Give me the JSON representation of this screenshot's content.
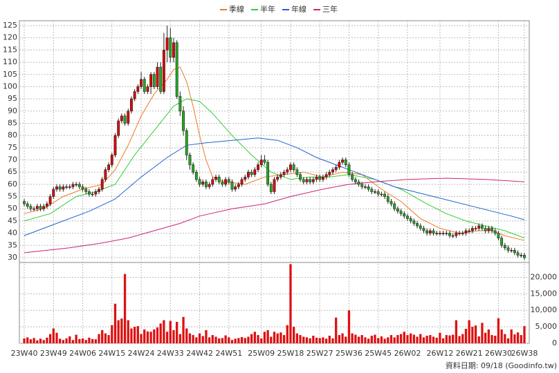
{
  "chart_data": {
    "type": "candlestick",
    "up_color": "#e00000",
    "down_color": "#22aa22",
    "grid": true,
    "xlim": [
      -1.5,
      155.5
    ],
    "xticks": [
      {
        "value": 0,
        "label": "23W40"
      },
      {
        "value": 9,
        "label": "23W49"
      },
      {
        "value": 18,
        "label": "24W06"
      },
      {
        "value": 27,
        "label": "24W15"
      },
      {
        "value": 36,
        "label": "24W24"
      },
      {
        "value": 45,
        "label": "24W33"
      },
      {
        "value": 54,
        "label": "24W42"
      },
      {
        "value": 63,
        "label": "24W51"
      },
      {
        "value": 73,
        "label": "25W09"
      },
      {
        "value": 82,
        "label": "25W18"
      },
      {
        "value": 91,
        "label": "25W27"
      },
      {
        "value": 100,
        "label": "25W36"
      },
      {
        "value": 109,
        "label": "25W45"
      },
      {
        "value": 118,
        "label": "26W02"
      },
      {
        "value": 128,
        "label": "26W12"
      },
      {
        "value": 137,
        "label": "26W21"
      },
      {
        "value": 146,
        "label": "26W30"
      },
      {
        "value": 154,
        "label": "26W38"
      }
    ],
    "ylim": [
      28,
      127
    ],
    "yticks": [
      30,
      35,
      40,
      45,
      50,
      55,
      60,
      65,
      70,
      75,
      80,
      85,
      90,
      95,
      100,
      105,
      110,
      115,
      120,
      125
    ],
    "open": [
      53,
      52,
      51,
      50,
      50,
      51,
      50,
      51,
      52,
      55,
      58,
      59,
      58,
      59,
      59,
      59,
      60,
      60,
      59,
      58,
      57,
      56,
      56,
      57,
      58,
      62,
      66,
      68,
      72,
      80,
      86,
      88,
      85,
      90,
      95,
      98,
      100,
      103,
      98,
      100,
      105,
      100,
      108,
      98,
      115,
      120,
      112,
      118,
      96,
      90,
      82,
      72,
      68,
      65,
      62,
      60,
      61,
      59,
      60,
      62,
      63,
      61,
      60,
      62,
      61,
      58,
      59,
      60,
      62,
      63,
      65,
      64,
      66,
      68,
      70,
      69,
      60,
      57,
      62,
      63,
      64,
      65,
      66,
      68,
      66,
      64,
      62,
      61,
      62,
      61,
      62,
      63,
      62,
      63,
      64,
      65,
      66,
      67,
      69,
      70,
      68,
      64,
      62,
      61,
      60,
      59,
      59,
      58,
      57,
      57,
      56,
      56,
      55,
      53,
      52,
      50,
      49,
      48,
      47,
      46,
      45,
      44,
      43,
      42,
      41,
      40,
      41,
      40,
      40,
      40,
      40,
      40,
      39,
      39,
      40,
      40,
      40,
      41,
      41,
      42,
      42,
      43,
      42,
      41,
      42,
      41,
      40,
      38,
      35,
      34,
      33,
      33,
      32,
      31,
      31
    ],
    "high": [
      54,
      53,
      52,
      51,
      52,
      52,
      52,
      53,
      56,
      59,
      60,
      60,
      60,
      60,
      60,
      61,
      61,
      61,
      60,
      59,
      58,
      57,
      58,
      59,
      63,
      67,
      69,
      73,
      81,
      87,
      89,
      89,
      91,
      96,
      99,
      101,
      106,
      104,
      101,
      106,
      106,
      110,
      110,
      122,
      125,
      124,
      120,
      119,
      98,
      92,
      83,
      73,
      69,
      66,
      63,
      62,
      62,
      61,
      63,
      64,
      64,
      62,
      63,
      63,
      62,
      60,
      61,
      63,
      64,
      66,
      66,
      67,
      69,
      72,
      72,
      70,
      61,
      63,
      64,
      65,
      66,
      67,
      69,
      69,
      67,
      65,
      63,
      63,
      63,
      63,
      64,
      64,
      64,
      65,
      66,
      67,
      68,
      70,
      71,
      71,
      69,
      65,
      63,
      62,
      61,
      60,
      60,
      59,
      58,
      58,
      57,
      57,
      56,
      54,
      53,
      51,
      50,
      49,
      48,
      47,
      46,
      45,
      44,
      43,
      42,
      42,
      42,
      41,
      41,
      41,
      41,
      41,
      40,
      41,
      41,
      41,
      42,
      42,
      43,
      43,
      44,
      44,
      43,
      43,
      43,
      42,
      41,
      39,
      36,
      35,
      34,
      34,
      33,
      32,
      32
    ],
    "low": [
      51,
      50,
      49,
      49,
      49,
      49,
      49,
      50,
      51,
      54,
      57,
      57,
      57,
      58,
      58,
      58,
      59,
      58,
      57,
      56,
      55,
      55,
      55,
      56,
      57,
      61,
      65,
      67,
      71,
      79,
      85,
      84,
      84,
      89,
      94,
      97,
      99,
      97,
      97,
      97,
      99,
      99,
      97,
      97,
      110,
      110,
      110,
      95,
      88,
      80,
      70,
      66,
      64,
      61,
      59,
      59,
      58,
      58,
      59,
      61,
      60,
      59,
      59,
      60,
      57,
      57,
      58,
      59,
      61,
      62,
      63,
      63,
      65,
      67,
      68,
      59,
      56,
      56,
      61,
      62,
      63,
      64,
      65,
      65,
      63,
      61,
      60,
      60,
      60,
      60,
      61,
      61,
      61,
      62,
      63,
      64,
      65,
      66,
      68,
      67,
      63,
      61,
      60,
      59,
      58,
      58,
      57,
      56,
      56,
      55,
      55,
      54,
      52,
      51,
      49,
      48,
      47,
      46,
      45,
      44,
      43,
      42,
      41,
      40,
      39,
      39,
      39,
      39,
      39,
      39,
      39,
      38,
      38,
      38,
      39,
      39,
      39,
      40,
      40,
      41,
      41,
      41,
      40,
      40,
      40,
      39,
      37,
      34,
      33,
      32,
      32,
      31,
      30,
      30,
      29
    ],
    "close": [
      52,
      51,
      50,
      50,
      51,
      50,
      51,
      52,
      55,
      58,
      59,
      58,
      59,
      59,
      59,
      60,
      60,
      59,
      58,
      57,
      56,
      56,
      57,
      58,
      62,
      66,
      68,
      72,
      80,
      86,
      88,
      85,
      90,
      95,
      98,
      100,
      103,
      98,
      100,
      105,
      100,
      108,
      98,
      115,
      120,
      112,
      118,
      96,
      90,
      82,
      72,
      68,
      65,
      62,
      60,
      61,
      59,
      60,
      62,
      63,
      61,
      60,
      62,
      61,
      58,
      59,
      60,
      62,
      63,
      65,
      64,
      66,
      68,
      70,
      69,
      60,
      57,
      62,
      63,
      64,
      65,
      66,
      68,
      66,
      64,
      62,
      61,
      62,
      61,
      62,
      63,
      62,
      63,
      64,
      65,
      66,
      67,
      69,
      70,
      68,
      64,
      62,
      61,
      60,
      59,
      59,
      58,
      57,
      57,
      56,
      56,
      55,
      53,
      52,
      50,
      49,
      48,
      47,
      46,
      45,
      44,
      43,
      42,
      41,
      40,
      41,
      40,
      40,
      40,
      40,
      40,
      39,
      39,
      40,
      40,
      40,
      41,
      41,
      42,
      42,
      43,
      42,
      41,
      42,
      41,
      40,
      38,
      35,
      34,
      33,
      33,
      32,
      31,
      31,
      30
    ],
    "series": [
      {
        "name": "季線",
        "color": "#f07820",
        "x": [
          0,
          6,
          12,
          18,
          24,
          28,
          32,
          36,
          40,
          44,
          46,
          48,
          50,
          52,
          54,
          56,
          58,
          62,
          68,
          74,
          80,
          86,
          92,
          98,
          104,
          110,
          116,
          122,
          128,
          134,
          140,
          144,
          148,
          154
        ],
        "values": [
          48,
          50,
          55,
          58,
          60,
          66,
          76,
          88,
          97,
          103,
          107,
          108,
          102,
          92,
          80,
          70,
          63,
          61,
          60,
          63,
          64,
          65,
          63,
          65,
          64,
          58,
          53,
          46,
          42,
          40,
          41,
          41,
          39,
          37
        ]
      },
      {
        "name": "半年",
        "color": "#33cc33",
        "x": [
          0,
          8,
          16,
          22,
          28,
          34,
          40,
          46,
          50,
          54,
          58,
          64,
          70,
          76,
          82,
          88,
          94,
          100,
          108,
          116,
          124,
          130,
          136,
          142,
          148,
          154
        ],
        "values": [
          45,
          48,
          55,
          57,
          60,
          72,
          82,
          92,
          95,
          94,
          89,
          80,
          72,
          65,
          62,
          63,
          63,
          64,
          62,
          58,
          52,
          48,
          45,
          43,
          41,
          38
        ]
      },
      {
        "name": "年線",
        "color": "#2060d0",
        "x": [
          0,
          10,
          20,
          28,
          36,
          44,
          50,
          56,
          64,
          72,
          78,
          84,
          90,
          96,
          102,
          108,
          114,
          120,
          126,
          132,
          138,
          144,
          150,
          154
        ],
        "values": [
          39,
          44,
          49,
          54,
          63,
          71,
          76,
          77,
          78,
          79,
          78,
          75,
          71,
          68,
          65,
          62,
          59,
          57,
          55,
          53,
          51,
          49,
          47,
          45.5
        ]
      },
      {
        "name": "三年",
        "color": "#cc2277",
        "x": [
          0,
          14,
          24,
          32,
          40,
          48,
          54,
          64,
          74,
          82,
          92,
          100,
          108,
          118,
          130,
          142,
          154
        ],
        "values": [
          32,
          34,
          36,
          38,
          41,
          44,
          47,
          50,
          52,
          55,
          58,
          60,
          61,
          62,
          62.5,
          62,
          61
        ]
      }
    ],
    "volume": {
      "color": "#dd1111",
      "ylim": [
        0,
        24500
      ],
      "yticks": [
        0,
        {
          "value": 5000,
          "label": "5,000"
        },
        {
          "value": 10000,
          "label": "10,000"
        },
        {
          "value": 15000,
          "label": "15,000"
        },
        {
          "value": 20000,
          "label": "20,000"
        }
      ],
      "values": [
        1500,
        1800,
        1200,
        1600,
        900,
        1400,
        1000,
        1700,
        2800,
        4500,
        3200,
        1400,
        1000,
        1500,
        2100,
        1000,
        2600,
        1300,
        1500,
        1000,
        1700,
        1300,
        1200,
        2800,
        4000,
        3000,
        2500,
        5500,
        12000,
        7000,
        7500,
        21000,
        7000,
        4500,
        5000,
        5200,
        2800,
        4200,
        3600,
        3500,
        4200,
        4800,
        6000,
        7000,
        3500,
        6800,
        4000,
        6500,
        2800,
        8000,
        4500,
        3000,
        2500,
        1800,
        3000,
        2200,
        4000,
        1800,
        2500,
        2000,
        1500,
        1600,
        2400,
        1800,
        1000,
        1400,
        1600,
        1900,
        1600,
        2000,
        2800,
        3500,
        2500,
        1500,
        3500,
        4000,
        2000,
        3500,
        3000,
        3300,
        2500,
        5500,
        24000,
        5000,
        3000,
        2500,
        2000,
        1800,
        1500,
        2300,
        1700,
        1600,
        1800,
        1400,
        2300,
        1500,
        7800,
        2500,
        3000,
        2000,
        10000,
        3000,
        2600,
        2000,
        2500,
        1800,
        1400,
        2300,
        2600,
        1600,
        2100,
        1400,
        1800,
        2500,
        1800,
        2500,
        2800,
        3500,
        2500,
        3000,
        2600,
        2000,
        2800,
        1800,
        2300,
        2500,
        2000,
        1700,
        3200,
        1500,
        2500,
        2400,
        2600,
        7000,
        2200,
        2800,
        4400,
        7000,
        5000,
        5400,
        2100,
        6200,
        3200,
        4200,
        2500,
        2300,
        7600,
        4200,
        2800,
        1500,
        4200,
        2700,
        3300,
        2500,
        5200
      ]
    },
    "footer": "資料日期: 09/18 (Goodinfo.tw)"
  }
}
